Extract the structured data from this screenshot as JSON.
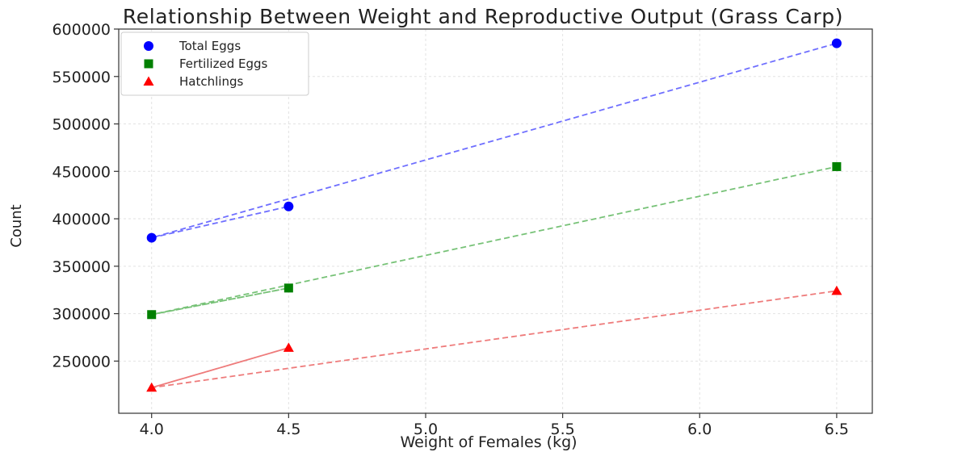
{
  "chart_data": {
    "type": "scatter",
    "title": "Relationship Between Weight and Reproductive Output (Grass Carp)",
    "xlabel": "Weight of Females (kg)",
    "ylabel": "Count",
    "xlim": [
      3.88,
      6.63
    ],
    "ylim": [
      195000,
      600000
    ],
    "xticks": [
      "4.0",
      "4.5",
      "5.0",
      "5.5",
      "6.0",
      "6.5"
    ],
    "yticks": [
      "250000",
      "300000",
      "350000",
      "400000",
      "450000",
      "500000",
      "550000",
      "600000"
    ],
    "grid": true,
    "legend_position": "top-left",
    "series": [
      {
        "name": "Total Eggs",
        "marker": "circle",
        "color": "#0000ff",
        "line_color": "#6f6fff",
        "x": [
          4.0,
          4.5,
          6.5
        ],
        "values": [
          380000,
          413000,
          585000
        ],
        "trend": [
          [
            4.0,
            380000
          ],
          [
            4.5,
            413000
          ],
          [
            4.0,
            380000
          ],
          [
            6.5,
            585000
          ]
        ]
      },
      {
        "name": "Fertilized Eggs",
        "marker": "square",
        "color": "#008000",
        "line_color": "#77c277",
        "x": [
          4.0,
          4.5,
          6.5
        ],
        "values": [
          299000,
          327000,
          455000
        ],
        "trend": [
          [
            4.0,
            299000
          ],
          [
            4.5,
            327000
          ],
          [
            4.0,
            299000
          ],
          [
            6.5,
            455000
          ]
        ]
      },
      {
        "name": "Hatchlings",
        "marker": "triangle",
        "color": "#ff0000",
        "line_color": "#ee7b7b",
        "x": [
          4.0,
          4.5,
          6.5
        ],
        "values": [
          222000,
          264000,
          324000
        ],
        "trend": [
          [
            4.0,
            222000
          ],
          [
            4.5,
            264000
          ],
          [
            4.0,
            222000
          ],
          [
            6.5,
            324000
          ]
        ]
      }
    ]
  }
}
